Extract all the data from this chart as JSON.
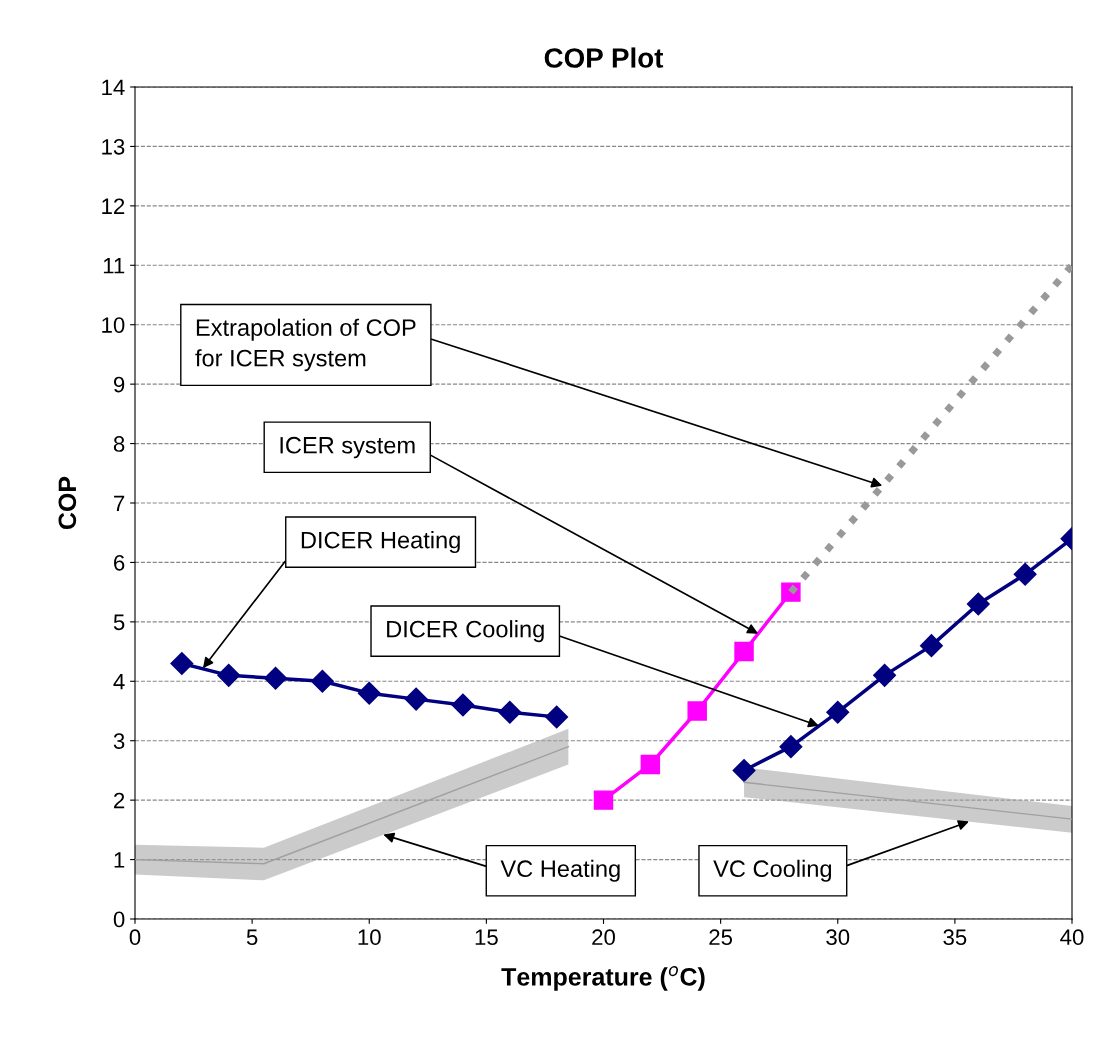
{
  "chart_data": {
    "type": "line",
    "title": "COP Plot",
    "xlabel": "Temperature ($^{o}$C)",
    "ylabel": "COP",
    "xlim": [
      0,
      40
    ],
    "xticks": [
      0,
      5,
      10,
      15,
      20,
      25,
      30,
      35,
      40
    ],
    "ylim": [
      0,
      14
    ],
    "yticks": [
      0,
      1,
      2,
      3,
      4,
      5,
      6,
      7,
      8,
      9,
      10,
      11,
      12,
      13,
      14
    ],
    "grid": "y",
    "legend": false,
    "series": [
      {
        "color": "#000080",
        "marker": "diamond",
        "line_style": "solid",
        "x": [
          2,
          4,
          6,
          8,
          10,
          12,
          14,
          16,
          18
        ],
        "values": [
          4.3,
          4.1,
          4.05,
          4.0,
          3.8,
          3.7,
          3.6,
          3.48,
          3.4
        ]
      },
      {
        "color": "#ff00ff",
        "marker": "square",
        "line_style": "solid",
        "x": [
          20,
          22,
          24,
          26,
          28
        ],
        "values": [
          2.0,
          2.6,
          3.5,
          4.5,
          5.5
        ]
      },
      {
        "color": "#999999",
        "marker": "none",
        "line_style": "dotted",
        "x": [
          28,
          40
        ],
        "values": [
          5.5,
          11.0
        ]
      },
      {
        "color": "#000080",
        "marker": "diamond",
        "line_style": "solid",
        "x": [
          26,
          28,
          30,
          32,
          34,
          36,
          38,
          40
        ],
        "values": [
          2.5,
          2.9,
          3.48,
          4.1,
          4.6,
          5.3,
          5.8,
          6.4
        ]
      },
      {
        "color": "#a0a0a0",
        "marker": "none",
        "line_style": "solid",
        "x": [
          0,
          5.5,
          18.5
        ],
        "values": [
          1.0,
          0.93,
          2.9
        ],
        "lower": [
          0.75,
          0.65,
          2.6
        ],
        "upper": [
          1.25,
          1.2,
          3.2
        ]
      },
      {
        "color": "#a0a0a0",
        "marker": "none",
        "line_style": "solid",
        "x": [
          26,
          40
        ],
        "values": [
          2.3,
          1.68
        ],
        "lower": [
          2.05,
          1.45
        ],
        "upper": [
          2.55,
          1.9
        ]
      }
    ],
    "annotations": [
      {
        "text": "Extrapolation of COP\nfor ICER system",
        "x": 31.9,
        "y": 7.29
      },
      {
        "text": "ICER system",
        "x": 26.6,
        "y": 4.8
      },
      {
        "text": "DICER Heating",
        "x": 2.9,
        "y": 4.22
      },
      {
        "text": "DICER Cooling",
        "x": 29.2,
        "y": 3.25
      },
      {
        "text": "VC Heating",
        "x": 10.6,
        "y": 1.42
      },
      {
        "text": "VC Cooling",
        "x": 35.6,
        "y": 1.64
      }
    ]
  }
}
